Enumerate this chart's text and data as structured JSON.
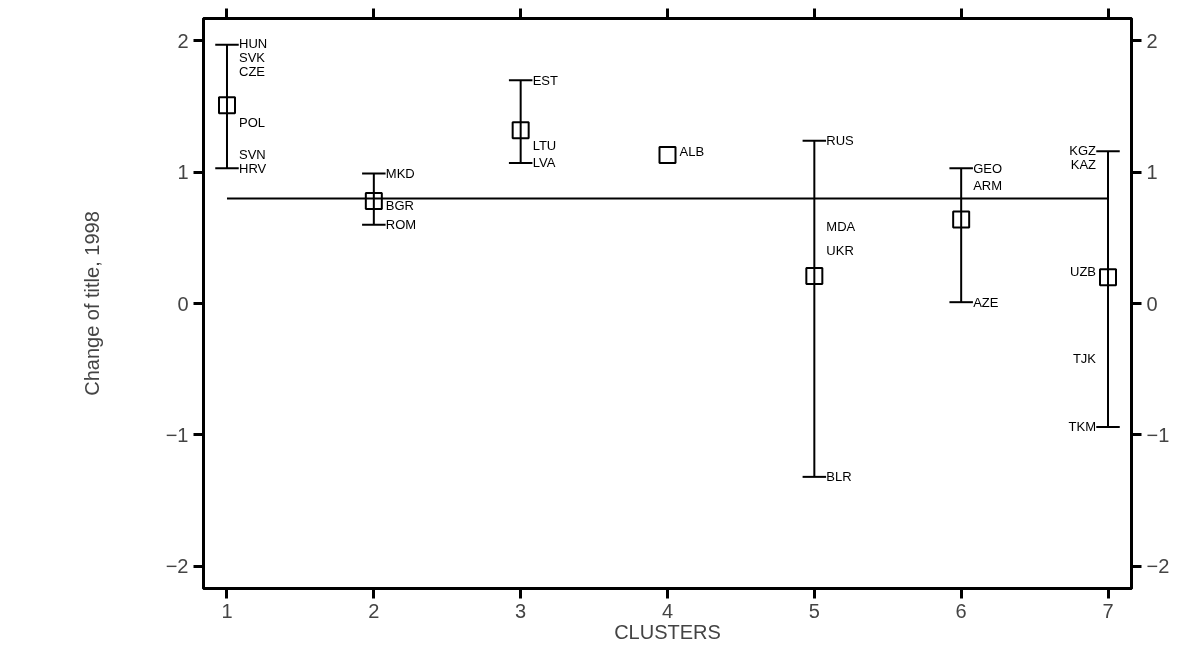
{
  "chart_data": {
    "type": "scatter",
    "xlabel": "CLUSTERS",
    "ylabel": "Change of title, 1998",
    "xlim": [
      0.84,
      7.16
    ],
    "xticks": [
      1,
      2,
      3,
      4,
      5,
      6,
      7
    ],
    "ylim": [
      -2.17,
      2.17
    ],
    "yticks": [
      -2,
      -1,
      0,
      1,
      2
    ],
    "y2lim": [
      -2.17,
      2.17
    ],
    "y2ticks": [
      -2,
      -1,
      0,
      1,
      2
    ],
    "grid": false,
    "marker": "square",
    "series": [
      {
        "color": "#000000",
        "x": [
          1,
          2,
          3,
          4,
          5,
          6,
          7
        ],
        "values": [
          1.51,
          0.78,
          1.32,
          1.13,
          0.21,
          0.64,
          0.2
        ],
        "errors": [
          [
            1.03,
            1.97
          ],
          [
            0.6,
            0.99
          ],
          [
            1.07,
            1.7
          ],
          null,
          [
            -1.32,
            1.24
          ],
          [
            0.01,
            1.03
          ],
          [
            -0.94,
            1.16
          ]
        ]
      },
      {
        "type": "line",
        "color": "#000000",
        "x": [
          1,
          7
        ],
        "values": [
          0.8,
          0.8
        ],
        "marker": "none",
        "line_style": "solid"
      }
    ],
    "annotations": [
      {
        "text": "HUN",
        "x": 1,
        "y": 1.97
      },
      {
        "text": "SVK",
        "x": 1,
        "y": 1.83
      },
      {
        "text": "CZE",
        "x": 1,
        "y": 1.83
      },
      {
        "text": "POL",
        "x": 1,
        "y": 1.38
      },
      {
        "text": "SVN",
        "x": 1,
        "y": 1.13
      },
      {
        "text": "HRV",
        "x": 1,
        "y": 1.03
      },
      {
        "text": "MKD",
        "x": 2,
        "y": 0.99
      },
      {
        "text": "BGR",
        "x": 2,
        "y": 0.76
      },
      {
        "text": "ROM",
        "x": 2,
        "y": 0.6
      },
      {
        "text": "EST",
        "x": 3,
        "y": 1.7
      },
      {
        "text": "LTU",
        "x": 3,
        "y": 1.2
      },
      {
        "text": "LVA",
        "x": 3,
        "y": 1.07
      },
      {
        "text": "ALB",
        "x": 4,
        "y": 1.16
      },
      {
        "text": "RUS",
        "x": 5,
        "y": 1.24
      },
      {
        "text": "MDA",
        "x": 5,
        "y": 0.59
      },
      {
        "text": "UKR",
        "x": 5,
        "y": 0.4
      },
      {
        "text": "BLR",
        "x": 5,
        "y": -1.32
      },
      {
        "text": "GEO",
        "x": 6,
        "y": 1.03
      },
      {
        "text": "ARM",
        "x": 6,
        "y": 0.9
      },
      {
        "text": "AZE",
        "x": 6,
        "y": 0.01
      },
      {
        "text": "KGZ",
        "x": 7,
        "y": 1.16
      },
      {
        "text": "KAZ",
        "x": 7,
        "y": 1.06
      },
      {
        "text": "UZB",
        "x": 7,
        "y": 0.24
      },
      {
        "text": "TJK",
        "x": 7,
        "y": -0.42
      },
      {
        "text": "TKM",
        "x": 7,
        "y": -0.94
      }
    ]
  }
}
